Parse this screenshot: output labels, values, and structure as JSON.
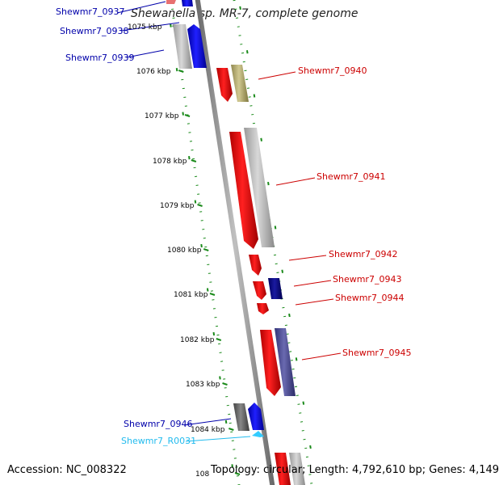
{
  "title": "Shewanella sp. MR-7, complete genome",
  "accession": "Accession: NC_008322",
  "summary": "Topology: circular; Length: 4,792,610 bp; Genes: 4,149",
  "ticks": [
    {
      "label": "1075 kbp"
    },
    {
      "label": "1076 kbp"
    },
    {
      "label": "1077 kbp"
    },
    {
      "label": "1078 kbp"
    },
    {
      "label": "1079 kbp"
    },
    {
      "label": "1080 kbp"
    },
    {
      "label": "1081 kbp"
    },
    {
      "label": "1082 kbp"
    },
    {
      "label": "1083 kbp"
    },
    {
      "label": "1084 kbp"
    },
    {
      "label": "108"
    }
  ],
  "genes": [
    {
      "name": "Shewmr7_0937",
      "strand": "minus",
      "color": "#0000aa"
    },
    {
      "name": "Shewmr7_0938",
      "strand": "minus",
      "color": "#0000aa"
    },
    {
      "name": "Shewmr7_0939",
      "strand": "minus",
      "color": "#0000aa"
    },
    {
      "name": "Shewmr7_0940",
      "strand": "plus",
      "color": "#cc0000"
    },
    {
      "name": "Shewmr7_0941",
      "strand": "plus",
      "color": "#cc0000"
    },
    {
      "name": "Shewmr7_0942",
      "strand": "plus",
      "color": "#cc0000"
    },
    {
      "name": "Shewmr7_0943",
      "strand": "plus",
      "color": "#cc0000"
    },
    {
      "name": "Shewmr7_0944",
      "strand": "plus",
      "color": "#cc0000"
    },
    {
      "name": "Shewmr7_0945",
      "strand": "plus",
      "color": "#cc0000"
    },
    {
      "name": "Shewmr7_0946",
      "strand": "minus",
      "color": "#0000aa"
    },
    {
      "name": "Shewmr7_R0031",
      "strand": "minus",
      "color": "#22bbee"
    }
  ],
  "colors": {
    "backbone": "#888888",
    "gc_dots": "#1a8a1a",
    "forward": "#ee0000",
    "reverse": "#0000ee",
    "cog": [
      "#bbbbbb",
      "#b8b070",
      "#000080",
      "#555599",
      "#666666"
    ],
    "rna": "#33ccff"
  }
}
